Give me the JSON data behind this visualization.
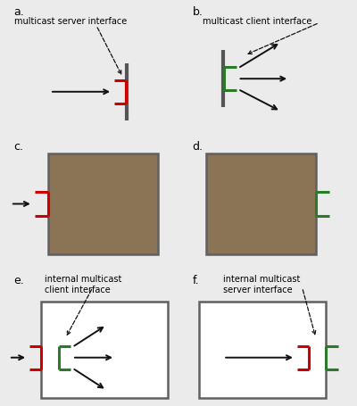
{
  "bg_color": "#ebebeb",
  "box_fill": "#8B7355",
  "box_edge": "#606060",
  "red": "#cc0000",
  "green": "#2a7a2a",
  "arrow_color": "#111111",
  "wall_color": "#555555",
  "text_color": "#111111",
  "label_a": "a.",
  "label_b": "b.",
  "label_c": "c.",
  "label_d": "d.",
  "label_e": "e.",
  "label_f": "f.",
  "title_a": "multicast server interface",
  "title_b": "multicast client interface",
  "title_e": "internal multicast\nclient interface",
  "title_f": "internal multicast\nserver interface"
}
